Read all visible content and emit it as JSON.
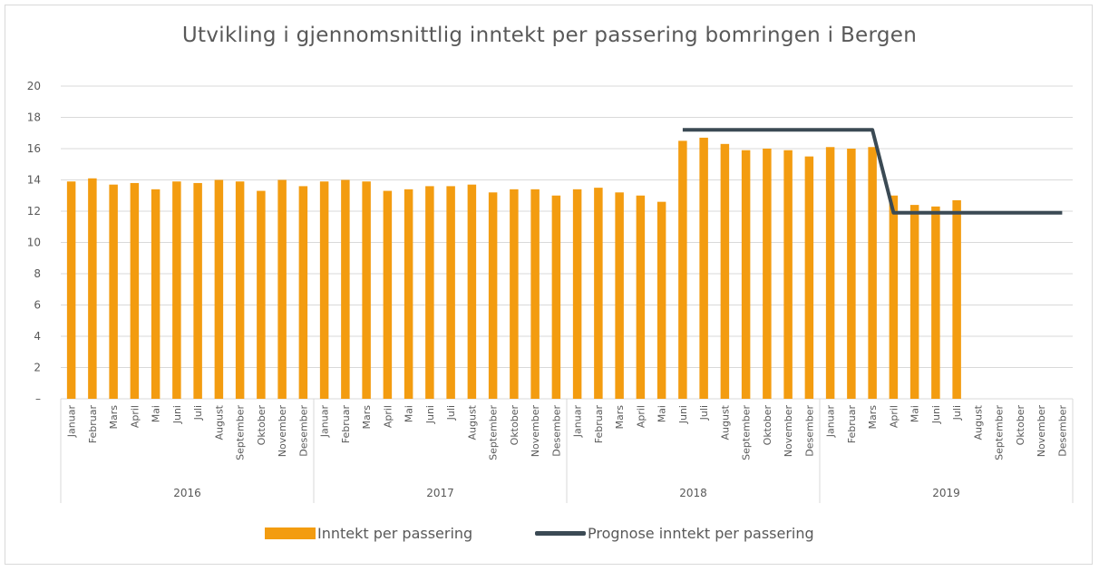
{
  "chart_data": {
    "type": "bar",
    "title": "Utvikling i gjennomsnittlig inntekt per passering bomringen i Bergen",
    "ylim": [
      0,
      20
    ],
    "yticks": [
      "–",
      "2",
      "4",
      "6",
      "8",
      "10",
      "12",
      "14",
      "16",
      "18",
      "20"
    ],
    "grid": true,
    "legend_position": "bottom",
    "groups": [
      "2016",
      "2017",
      "2018",
      "2019"
    ],
    "months": [
      "Januar",
      "Februar",
      "Mars",
      "April",
      "Mai",
      "Juni",
      "Juli",
      "August",
      "September",
      "Oktober",
      "November",
      "Desember"
    ],
    "categories": [
      "Januar 2016",
      "Februar 2016",
      "Mars 2016",
      "April 2016",
      "Mai 2016",
      "Juni 2016",
      "Juli 2016",
      "August 2016",
      "September 2016",
      "Oktober 2016",
      "November 2016",
      "Desember 2016",
      "Januar 2017",
      "Februar 2017",
      "Mars 2017",
      "April 2017",
      "Mai 2017",
      "Juni 2017",
      "Juli 2017",
      "August 2017",
      "September 2017",
      "Oktober 2017",
      "November 2017",
      "Desember 2017",
      "Januar 2018",
      "Februar 2018",
      "Mars 2018",
      "April 2018",
      "Mai 2018",
      "Juni 2018",
      "Juli 2018",
      "August 2018",
      "September 2018",
      "Oktober 2018",
      "November 2018",
      "Desember 2018",
      "Januar 2019",
      "Februar 2019",
      "Mars 2019",
      "April 2019",
      "Mai 2019",
      "Juni 2019",
      "Juli 2019",
      "August 2019",
      "September 2019",
      "Oktober 2019",
      "November 2019",
      "Desember 2019"
    ],
    "series": [
      {
        "name": "Inntekt per passering",
        "type": "bar",
        "color": "#f39c10",
        "values": [
          13.9,
          14.1,
          13.7,
          13.8,
          13.4,
          13.9,
          13.8,
          14.0,
          13.9,
          13.3,
          14.0,
          13.6,
          13.9,
          14.0,
          13.9,
          13.3,
          13.4,
          13.6,
          13.6,
          13.7,
          13.2,
          13.4,
          13.4,
          13.0,
          13.4,
          13.5,
          13.2,
          13.0,
          12.6,
          16.5,
          16.7,
          16.3,
          15.9,
          16.0,
          15.9,
          15.5,
          16.1,
          16.0,
          16.1,
          13.0,
          12.4,
          12.3,
          12.7,
          null,
          null,
          null,
          null,
          null
        ]
      },
      {
        "name": "Prognose inntekt per passering",
        "type": "line",
        "color": "#3b4a54",
        "values": [
          null,
          null,
          null,
          null,
          null,
          null,
          null,
          null,
          null,
          null,
          null,
          null,
          null,
          null,
          null,
          null,
          null,
          null,
          null,
          null,
          null,
          null,
          null,
          null,
          null,
          null,
          null,
          null,
          null,
          17.2,
          17.2,
          17.2,
          17.2,
          17.2,
          17.2,
          17.2,
          17.2,
          17.2,
          17.2,
          11.9,
          11.9,
          11.9,
          11.9,
          11.9,
          11.9,
          11.9,
          11.9,
          11.9
        ]
      }
    ]
  },
  "legend": {
    "bar_label": "Inntekt per passering",
    "line_label": "Prognose inntekt per passering"
  }
}
